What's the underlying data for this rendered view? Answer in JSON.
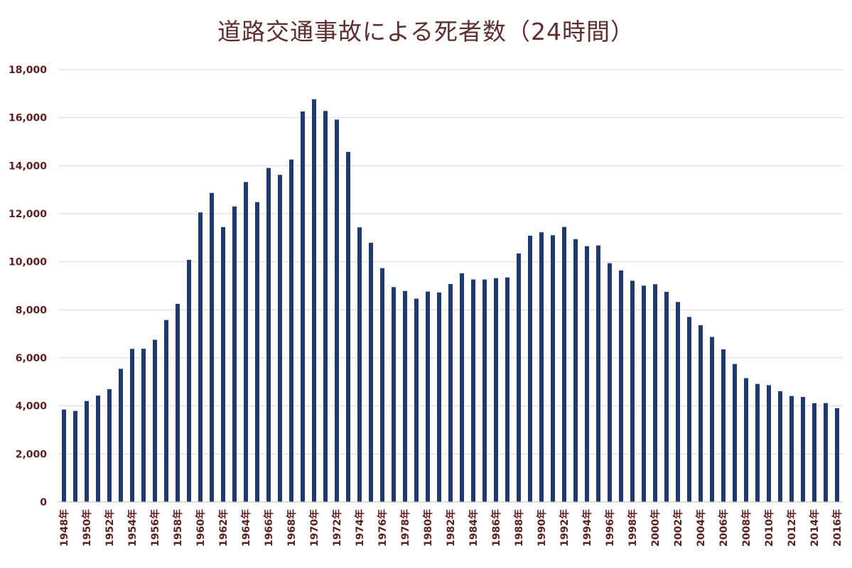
{
  "chart_data": {
    "type": "bar",
    "title": "道路交通事故による死者数（24時間）",
    "xlabel": "",
    "ylabel": "",
    "ylim": [
      0,
      18000
    ],
    "y_ticks": [
      "0",
      "2,000",
      "4,000",
      "6,000",
      "8,000",
      "10,000",
      "12,000",
      "14,000",
      "16,000",
      "18,000"
    ],
    "grid": true,
    "legend": "none",
    "categories": [
      "1948年",
      "1949年",
      "1950年",
      "1951年",
      "1952年",
      "1953年",
      "1954年",
      "1955年",
      "1956年",
      "1957年",
      "1958年",
      "1959年",
      "1960年",
      "1961年",
      "1962年",
      "1963年",
      "1964年",
      "1965年",
      "1966年",
      "1967年",
      "1968年",
      "1969年",
      "1970年",
      "1971年",
      "1972年",
      "1973年",
      "1974年",
      "1975年",
      "1976年",
      "1977年",
      "1978年",
      "1979年",
      "1980年",
      "1981年",
      "1982年",
      "1983年",
      "1984年",
      "1985年",
      "1986年",
      "1987年",
      "1988年",
      "1989年",
      "1990年",
      "1991年",
      "1992年",
      "1993年",
      "1994年",
      "1995年",
      "1996年",
      "1997年",
      "1998年",
      "1999年",
      "2000年",
      "2001年",
      "2002年",
      "2003年",
      "2004年",
      "2005年",
      "2006年",
      "2007年",
      "2008年",
      "2009年",
      "2010年",
      "2011年",
      "2012年",
      "2013年",
      "2014年",
      "2015年",
      "2016年"
    ],
    "values": [
      3848,
      3790,
      4202,
      4429,
      4696,
      5544,
      6374,
      6379,
      6751,
      7575,
      8248,
      10079,
      12055,
      12865,
      11445,
      12301,
      13318,
      12484,
      13904,
      13618,
      14256,
      16257,
      16765,
      16278,
      15918,
      14574,
      11432,
      10792,
      9734,
      8945,
      8783,
      8466,
      8760,
      8719,
      9073,
      9520,
      9262,
      9261,
      9317,
      9347,
      10344,
      11086,
      11227,
      11105,
      11451,
      10942,
      10649,
      10679,
      9942,
      9640,
      9211,
      9006,
      9066,
      8747,
      8326,
      7702,
      7358,
      6871,
      6352,
      5744,
      5155,
      4914,
      4863,
      4612,
      4411,
      4373,
      4113,
      4117,
      3904
    ]
  },
  "colors": {
    "bar": "#1f3b6e",
    "title": "#5c2e2e",
    "tick_label": "#5c1f1f",
    "grid": "#d9d9d9",
    "axis": "#bfbfbf"
  }
}
